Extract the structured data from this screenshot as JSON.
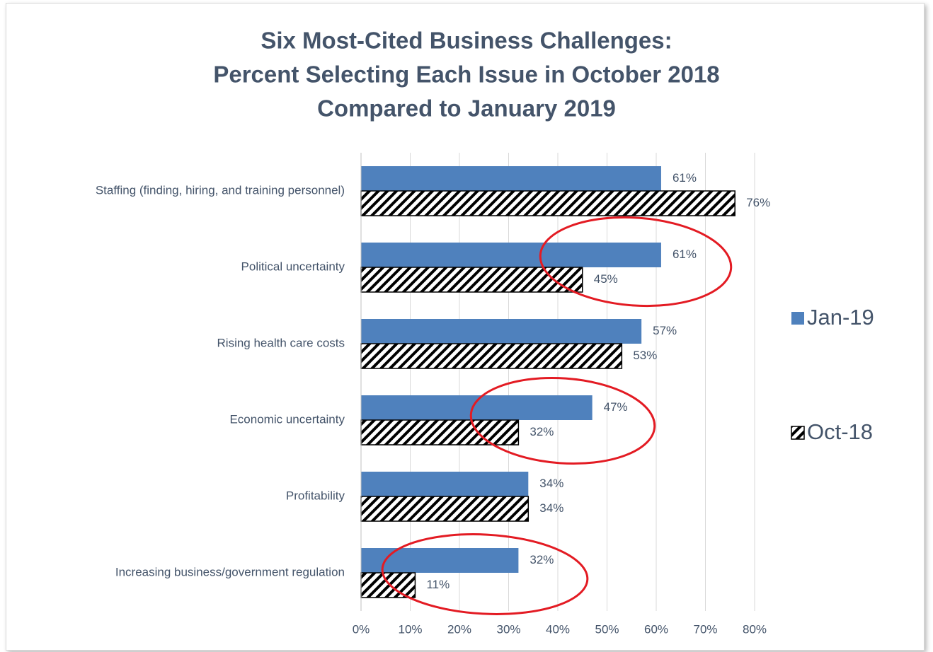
{
  "chart_data": {
    "type": "bar",
    "orientation": "horizontal",
    "title": [
      "Six Most-Cited Business Challenges:",
      "Percent Selecting Each Issue in October 2018",
      "Compared to January 2019"
    ],
    "categories": [
      "Staffing (finding, hiring, and training personnel)",
      "Political uncertainty",
      "Rising health care costs",
      "Economic uncertainty",
      "Profitability",
      "Increasing business/government regulation"
    ],
    "series": [
      {
        "name": "Jan-19",
        "color": "#4f81bd",
        "pattern": "solid",
        "values": [
          61,
          61,
          57,
          47,
          34,
          32
        ],
        "value_labels": [
          "61%",
          "61%",
          "57%",
          "47%",
          "34%",
          "32%"
        ]
      },
      {
        "name": "Oct-18",
        "color": "#000000",
        "pattern": "hatch",
        "values": [
          76,
          45,
          53,
          32,
          34,
          11
        ],
        "value_labels": [
          "76%",
          "45%",
          "53%",
          "32%",
          "34%",
          "11%"
        ]
      }
    ],
    "xlim": [
      0,
      80
    ],
    "xticks": [
      {
        "value": 0,
        "label": "0%"
      },
      {
        "value": 10,
        "label": "10%"
      },
      {
        "value": 20,
        "label": "20%"
      },
      {
        "value": 30,
        "label": "30%"
      },
      {
        "value": 40,
        "label": "40%"
      },
      {
        "value": 50,
        "label": "50%"
      },
      {
        "value": 60,
        "label": "60%"
      },
      {
        "value": 70,
        "label": "70%"
      },
      {
        "value": 80,
        "label": "80%"
      }
    ],
    "grid": true,
    "legend": "right"
  }
}
